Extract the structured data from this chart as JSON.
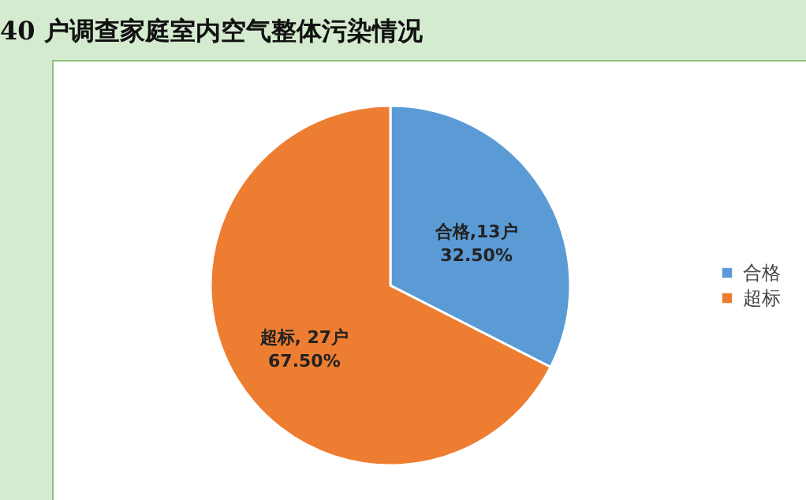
{
  "chart_data": {
    "type": "pie",
    "title": "40 户调查家庭室内空气整体污染情况",
    "categories": [
      "合格",
      "超标"
    ],
    "values": [
      13,
      27
    ],
    "colors": [
      "#5b9bd5",
      "#ed7d31"
    ],
    "value_labels": [
      "合格,13户\n32.50%",
      "超标, 27户\n67.50%"
    ],
    "legend": "right"
  }
}
